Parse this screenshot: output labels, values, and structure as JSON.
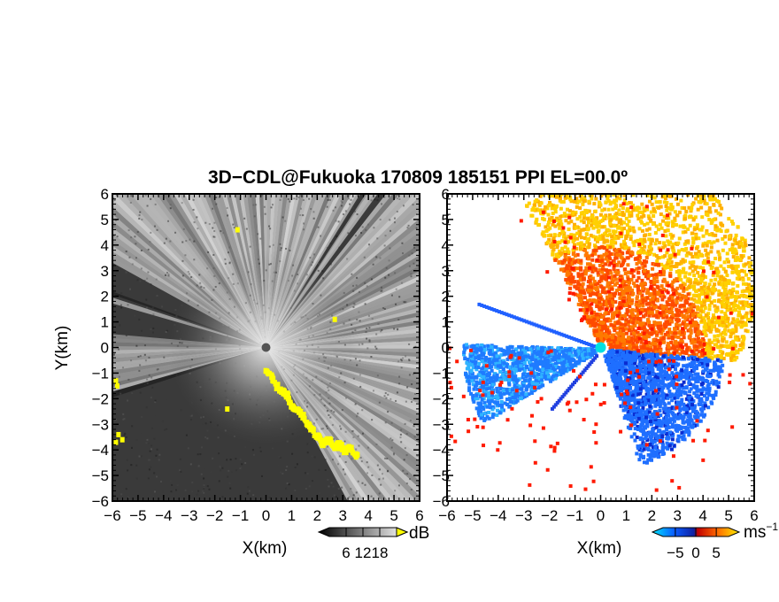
{
  "chart_data": {
    "title": "3D−CDL@Fukuoka 170809 185151 PPI EL=00.0º",
    "panels": [
      {
        "id": "reflectivity",
        "type": "heatmap",
        "xlabel": "X(km)",
        "ylabel": "Y(km)",
        "xlim": [
          -6,
          6
        ],
        "ylim": [
          -6,
          6
        ],
        "xticks": [
          "−6",
          "−5",
          "−4",
          "−3",
          "−2",
          "−1",
          "0",
          "1",
          "2",
          "3",
          "4",
          "5",
          "6"
        ],
        "yticks": [
          "−6",
          "−5",
          "−4",
          "−3",
          "−2",
          "−1",
          "0",
          "1",
          "2",
          "3",
          "4",
          "5",
          "6"
        ],
        "colorbar": {
          "unit": "dB",
          "ticks": [
            "6",
            "12",
            "18"
          ],
          "range": [
            0,
            24
          ]
        },
        "blanked_sector_deg": [
          150,
          300
        ],
        "highlight_color": "#ffff00"
      },
      {
        "id": "velocity",
        "type": "heatmap",
        "xlabel": "X(km)",
        "xlim": [
          -6,
          6
        ],
        "ylim": [
          -6,
          6
        ],
        "xticks": [
          "−6",
          "−5",
          "−4",
          "−3",
          "−2",
          "−1",
          "0",
          "1",
          "2",
          "3",
          "4",
          "5",
          "6"
        ],
        "colorbar": {
          "unit": "ms",
          "unit_exponent": "−1",
          "ticks": [
            "−5",
            "0",
            "5"
          ],
          "range": [
            -8,
            8
          ]
        },
        "colors": {
          "approaching": "#1f6fff",
          "receding": "#ff4a00",
          "strong": "#ffd000"
        }
      }
    ]
  }
}
